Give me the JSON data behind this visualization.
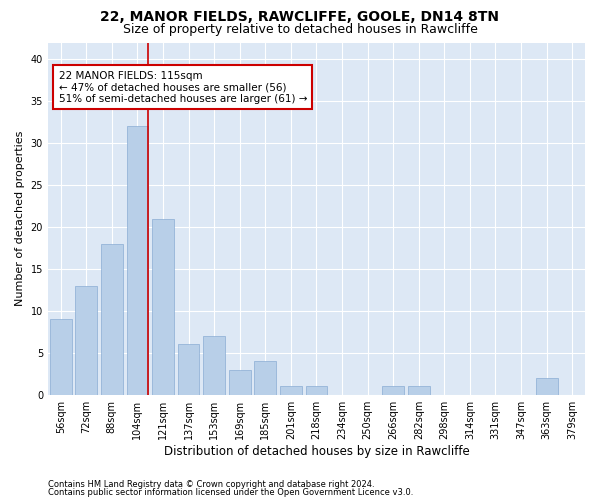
{
  "title1": "22, MANOR FIELDS, RAWCLIFFE, GOOLE, DN14 8TN",
  "title2": "Size of property relative to detached houses in Rawcliffe",
  "xlabel": "Distribution of detached houses by size in Rawcliffe",
  "ylabel": "Number of detached properties",
  "categories": [
    "56sqm",
    "72sqm",
    "88sqm",
    "104sqm",
    "121sqm",
    "137sqm",
    "153sqm",
    "169sqm",
    "185sqm",
    "201sqm",
    "218sqm",
    "234sqm",
    "250sqm",
    "266sqm",
    "282sqm",
    "298sqm",
    "314sqm",
    "331sqm",
    "347sqm",
    "363sqm",
    "379sqm"
  ],
  "values": [
    9,
    13,
    18,
    32,
    21,
    6,
    7,
    3,
    4,
    1,
    1,
    0,
    0,
    1,
    1,
    0,
    0,
    0,
    0,
    2,
    0
  ],
  "bar_color": "#b8cfe8",
  "bar_edgecolor": "#8aadd4",
  "property_line_label": "22 MANOR FIELDS: 115sqm",
  "annotation_line1": "← 47% of detached houses are smaller (56)",
  "annotation_line2": "51% of semi-detached houses are larger (61) →",
  "annotation_box_color": "#cc0000",
  "ylim": [
    0,
    42
  ],
  "yticks": [
    0,
    5,
    10,
    15,
    20,
    25,
    30,
    35,
    40
  ],
  "footer1": "Contains HM Land Registry data © Crown copyright and database right 2024.",
  "footer2": "Contains public sector information licensed under the Open Government Licence v3.0.",
  "plot_bg_color": "#dde8f5",
  "title1_fontsize": 10,
  "title2_fontsize": 9,
  "tick_fontsize": 7,
  "ylabel_fontsize": 8,
  "xlabel_fontsize": 8.5,
  "footer_fontsize": 6,
  "annotation_fontsize": 7.5
}
